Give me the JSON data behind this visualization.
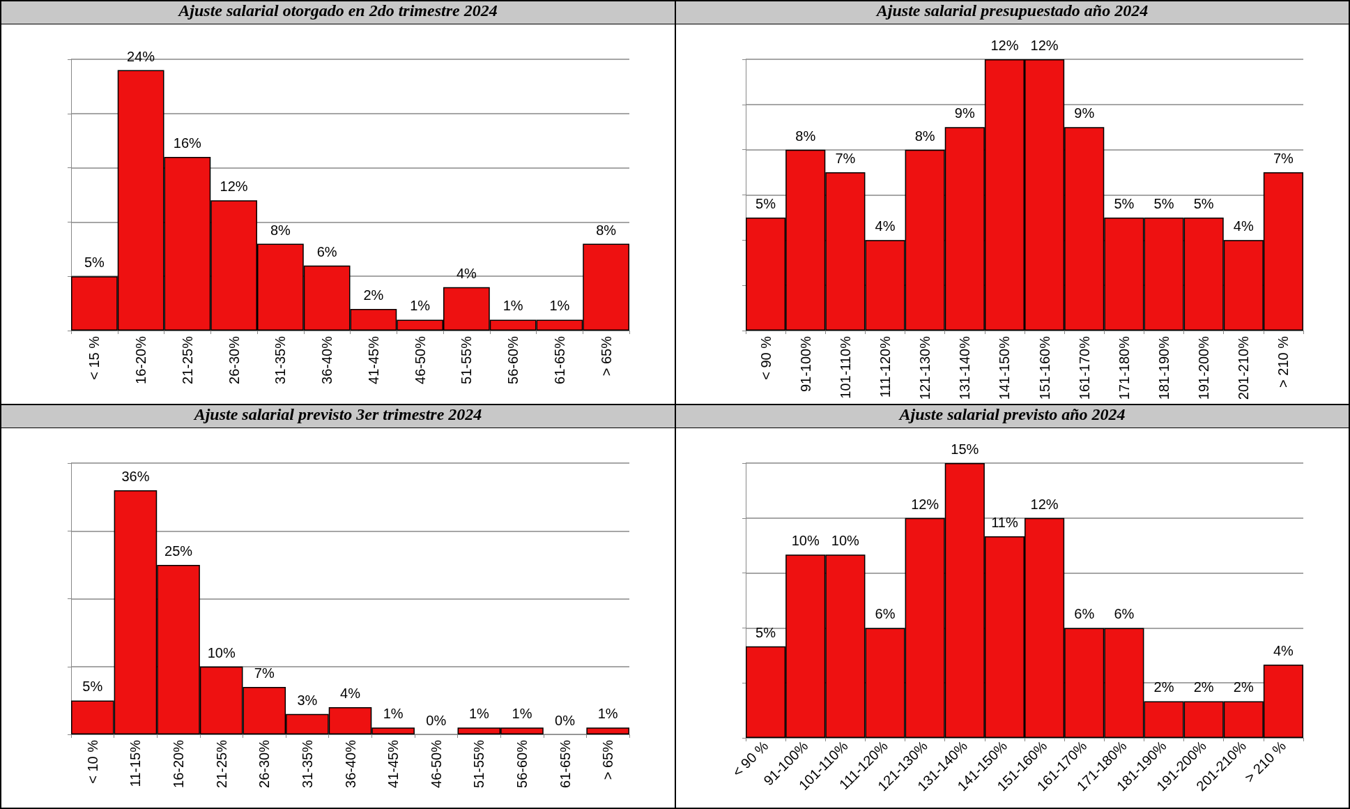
{
  "chart_data": [
    {
      "type": "bar",
      "title": "Ajuste salarial otorgado en 2do trimestre 2024",
      "categories": [
        "< 15 %",
        "16-20%",
        "21-25%",
        "26-30%",
        "31-35%",
        "36-40%",
        "41-45%",
        "46-50%",
        "51-55%",
        "56-60%",
        "61-65%",
        "> 65%"
      ],
      "values": [
        5,
        24,
        16,
        12,
        8,
        6,
        2,
        1,
        4,
        1,
        1,
        8
      ],
      "value_labels": [
        "5%",
        "24%",
        "16%",
        "12%",
        "8%",
        "6%",
        "2%",
        "1%",
        "4%",
        "1%",
        "1%",
        "8%"
      ],
      "color": "#ee1111",
      "grid": "y",
      "tick_labels": "x"
    },
    {
      "type": "bar",
      "title": "Ajuste salarial presupuestado año 2024",
      "categories": [
        "< 90 %",
        "91-100%",
        "101-110%",
        "111-120%",
        "121-130%",
        "131-140%",
        "141-150%",
        "151-160%",
        "161-170%",
        "171-180%",
        "181-190%",
        "191-200%",
        "201-210%",
        "> 210 %"
      ],
      "values": [
        5,
        8,
        7,
        4,
        8,
        9,
        12,
        12,
        9,
        5,
        5,
        5,
        4,
        7
      ],
      "value_labels": [
        "5%",
        "8%",
        "7%",
        "4%",
        "8%",
        "9%",
        "12%",
        "12%",
        "9%",
        "5%",
        "5%",
        "5%",
        "4%",
        "7%"
      ],
      "color": "#ee1111",
      "grid": "y",
      "tick_labels": "x"
    },
    {
      "type": "bar",
      "title": "Ajuste salarial previsto 3er trimestre 2024",
      "categories": [
        "< 10 %",
        "11-15%",
        "16-20%",
        "21-25%",
        "26-30%",
        "31-35%",
        "36-40%",
        "41-45%",
        "46-50%",
        "51-55%",
        "56-60%",
        "61-65%",
        "> 65%"
      ],
      "values": [
        5,
        36,
        25,
        10,
        7,
        3,
        4,
        1,
        0,
        1,
        1,
        0,
        1
      ],
      "value_labels": [
        "5%",
        "36%",
        "25%",
        "10%",
        "7%",
        "3%",
        "4%",
        "1%",
        "0%",
        "1%",
        "1%",
        "0%",
        "1%"
      ],
      "color": "#ee1111",
      "grid": "y",
      "tick_labels": "x"
    },
    {
      "type": "bar",
      "title": "Ajuste salarial previsto año 2024",
      "categories": [
        "< 90 %",
        "91-100%",
        "101-110%",
        "111-120%",
        "121-130%",
        "131-140%",
        "141-150%",
        "151-160%",
        "161-170%",
        "171-180%",
        "181-190%",
        "191-200%",
        "201-210%",
        "> 210 %"
      ],
      "values": [
        5,
        10,
        10,
        6,
        12,
        15,
        11,
        12,
        6,
        6,
        2,
        2,
        2,
        4
      ],
      "value_labels": [
        "5%",
        "10%",
        "10%",
        "6%",
        "12%",
        "15%",
        "11%",
        "12%",
        "6%",
        "6%",
        "2%",
        "2%",
        "2%",
        "4%"
      ],
      "color": "#ee1111",
      "grid": "y",
      "tick_labels": "x"
    }
  ]
}
